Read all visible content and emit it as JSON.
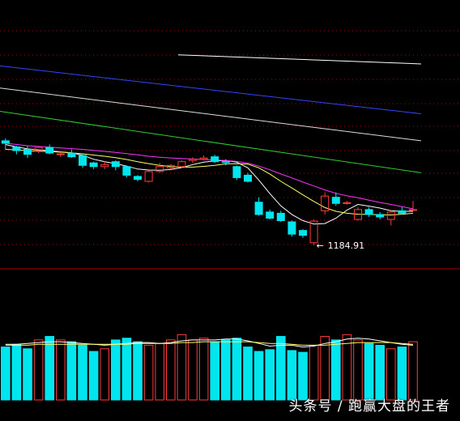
{
  "watermark": "头条号 / 跑赢大盘的王者",
  "colors": {
    "background": "#000000",
    "up": "#ff3b3b",
    "down": "#00e5ee",
    "divider": "#b00000",
    "gridline": "#a00000",
    "ma5": "#ffffff",
    "ma10": "#ffff66",
    "ma20": "#ff33ff",
    "ma60": "#33cc33",
    "ma120": "#dddddd",
    "ma250": "#3344ff"
  },
  "chart_data": {
    "type": "candlestick",
    "price_range": [
      1180,
      1240
    ],
    "annotation": {
      "text": "1184.91",
      "arrow": "←",
      "value": 1184.91,
      "index": 28
    },
    "candles": [
      {
        "o": 1227.5,
        "h": 1228.5,
        "l": 1223.8,
        "c": 1226.5
      },
      {
        "o": 1225.0,
        "h": 1225.5,
        "l": 1222.0,
        "c": 1223.5
      },
      {
        "o": 1224.0,
        "h": 1225.5,
        "l": 1220.5,
        "c": 1222.0
      },
      {
        "o": 1223.5,
        "h": 1225.0,
        "l": 1222.5,
        "c": 1224.8
      },
      {
        "o": 1224.8,
        "h": 1226.0,
        "l": 1222.0,
        "c": 1222.5
      },
      {
        "o": 1222.0,
        "h": 1223.0,
        "l": 1221.0,
        "c": 1222.2
      },
      {
        "o": 1222.5,
        "h": 1224.0,
        "l": 1220.5,
        "c": 1221.0
      },
      {
        "o": 1221.5,
        "h": 1222.5,
        "l": 1216.5,
        "c": 1217.5
      },
      {
        "o": 1218.5,
        "h": 1219.0,
        "l": 1216.0,
        "c": 1217.0
      },
      {
        "o": 1217.0,
        "h": 1219.0,
        "l": 1216.0,
        "c": 1217.8
      },
      {
        "o": 1219.0,
        "h": 1219.5,
        "l": 1215.5,
        "c": 1217.0
      },
      {
        "o": 1217.0,
        "h": 1217.5,
        "l": 1212.5,
        "c": 1213.5
      },
      {
        "o": 1213.0,
        "h": 1213.5,
        "l": 1211.0,
        "c": 1211.8
      },
      {
        "o": 1211.0,
        "h": 1215.5,
        "l": 1210.5,
        "c": 1215.0
      },
      {
        "o": 1215.0,
        "h": 1218.5,
        "l": 1214.5,
        "c": 1217.0
      },
      {
        "o": 1216.5,
        "h": 1218.0,
        "l": 1216.0,
        "c": 1217.5
      },
      {
        "o": 1217.0,
        "h": 1219.5,
        "l": 1216.5,
        "c": 1219.0
      },
      {
        "o": 1219.5,
        "h": 1220.8,
        "l": 1218.5,
        "c": 1220.0
      },
      {
        "o": 1220.0,
        "h": 1221.5,
        "l": 1219.5,
        "c": 1220.5
      },
      {
        "o": 1221.0,
        "h": 1221.8,
        "l": 1218.5,
        "c": 1219.0
      },
      {
        "o": 1219.0,
        "h": 1220.0,
        "l": 1217.5,
        "c": 1218.8
      },
      {
        "o": 1217.0,
        "h": 1217.5,
        "l": 1211.5,
        "c": 1212.5
      },
      {
        "o": 1213.5,
        "h": 1214.5,
        "l": 1210.5,
        "c": 1211.0
      },
      {
        "o": 1202.5,
        "h": 1204.5,
        "l": 1197.0,
        "c": 1197.5
      },
      {
        "o": 1198.5,
        "h": 1199.5,
        "l": 1195.5,
        "c": 1196.0
      },
      {
        "o": 1198.0,
        "h": 1199.0,
        "l": 1194.5,
        "c": 1195.0
      },
      {
        "o": 1194.5,
        "h": 1195.0,
        "l": 1188.5,
        "c": 1189.5
      },
      {
        "o": 1191.0,
        "h": 1191.5,
        "l": 1188.0,
        "c": 1189.0
      },
      {
        "o": 1186.0,
        "h": 1195.5,
        "l": 1184.91,
        "c": 1194.8
      },
      {
        "o": 1199.0,
        "h": 1206.5,
        "l": 1197.5,
        "c": 1205.0
      },
      {
        "o": 1204.5,
        "h": 1206.5,
        "l": 1201.0,
        "c": 1202.0
      },
      {
        "o": 1202.0,
        "h": 1203.0,
        "l": 1201.5,
        "c": 1202.3
      },
      {
        "o": 1195.5,
        "h": 1200.5,
        "l": 1195.0,
        "c": 1199.5
      },
      {
        "o": 1199.5,
        "h": 1200.5,
        "l": 1196.5,
        "c": 1197.5
      },
      {
        "o": 1197.5,
        "h": 1198.5,
        "l": 1195.5,
        "c": 1196.5
      },
      {
        "o": 1195.5,
        "h": 1199.5,
        "l": 1193.0,
        "c": 1198.5
      },
      {
        "o": 1199.0,
        "h": 1200.5,
        "l": 1197.5,
        "c": 1198.0
      },
      {
        "o": 1199.5,
        "h": 1203.0,
        "l": 1199.0,
        "c": 1199.5
      }
    ],
    "moving_averages": [
      {
        "key": "ma5",
        "values": [
          1226,
          1225,
          1224.2,
          1223.8,
          1223.5,
          1223,
          1222.6,
          1221.6,
          1220,
          1219,
          1218.2,
          1217.2,
          1216,
          1215.6,
          1215.5,
          1215.8,
          1216.6,
          1217.8,
          1218.8,
          1219.3,
          1219.5,
          1218.8,
          1216.5,
          1211.5,
          1206,
          1201,
          1197.5,
          1195,
          1193.6,
          1193.8,
          1196,
          1199.3,
          1201.6,
          1200.9,
          1200.1,
          1199,
          1198.8,
          1198.8
        ]
      },
      {
        "key": "ma10",
        "values": [
          1224,
          1223.8,
          1223.5,
          1223.3,
          1223.1,
          1222.9,
          1222.6,
          1222.2,
          1221.7,
          1221.2,
          1220.6,
          1219.9,
          1219,
          1218.2,
          1217.5,
          1217,
          1216.8,
          1216.8,
          1217.1,
          1217.5,
          1218.1,
          1218.2,
          1218,
          1216.5,
          1214,
          1211,
          1208.3,
          1205.5,
          1202.8,
          1200.3,
          1198.8,
          1198,
          1197.6,
          1197.5,
          1197.4,
          1197.3,
          1197.6,
          1198
        ]
      },
      {
        "key": "ma20",
        "values": [
          1226.5,
          1226,
          1225.5,
          1225.2,
          1224.9,
          1224.6,
          1224.3,
          1224,
          1223.6,
          1223.2,
          1222.8,
          1222.3,
          1221.8,
          1221.2,
          1220.8,
          1220.5,
          1220.3,
          1220.1,
          1219.9,
          1219.7,
          1219.5,
          1219.1,
          1218.4,
          1217.2,
          1215.7,
          1214,
          1212.4,
          1210.7,
          1209.1,
          1207.5,
          1206.1,
          1205.1,
          1204.3,
          1203.3,
          1202.4,
          1201.6,
          1200.7,
          1199.8
        ]
      }
    ],
    "long_mas": [
      {
        "key": "ma60",
        "x": [
          0,
          520
        ],
        "y": [
          1239.5,
          1214.5
        ]
      },
      {
        "key": "ma120",
        "x": [
          0,
          520
        ],
        "y": [
          1249,
          1227.5
        ]
      },
      {
        "key": "ma250",
        "x": [
          0,
          520
        ],
        "y": [
          1258,
          1238.5
        ]
      },
      {
        "key": "ma_top",
        "x": [
          220,
          520
        ],
        "y": [
          1262.5,
          1258.8
        ]
      }
    ],
    "volume": {
      "max": 100,
      "bars": [
        60,
        63,
        58,
        68,
        72,
        68,
        66,
        62,
        55,
        58,
        68,
        70,
        66,
        62,
        64,
        68,
        74,
        68,
        70,
        66,
        68,
        70,
        60,
        55,
        57,
        72,
        56,
        54,
        62,
        72,
        68,
        74,
        68,
        64,
        62,
        58,
        60,
        66
      ],
      "ma_lines": [
        {
          "key": "vol_ma5",
          "values": [
            63,
            63,
            64,
            65,
            66,
            66,
            65,
            64,
            63,
            62,
            63,
            64,
            65,
            65,
            64,
            65,
            67,
            68,
            68,
            68,
            69,
            69,
            67,
            64,
            61,
            62,
            62,
            60,
            61,
            64,
            66,
            69,
            70,
            69,
            67,
            65,
            63,
            62
          ]
        },
        {
          "key": "vol_ma10",
          "values": [
            62,
            62,
            62,
            63,
            63,
            63,
            63,
            63,
            63,
            63,
            63,
            63,
            64,
            64,
            64,
            64,
            65,
            65,
            66,
            66,
            66,
            66,
            66,
            65,
            64,
            64,
            63,
            62,
            62,
            62,
            63,
            64,
            65,
            65,
            65,
            65,
            64,
            63
          ]
        }
      ]
    }
  }
}
